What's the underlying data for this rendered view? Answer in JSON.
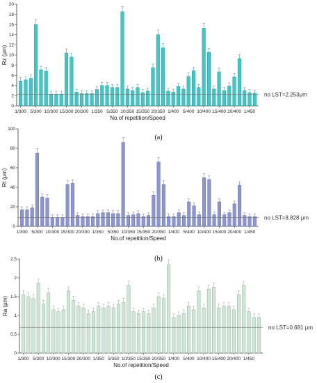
{
  "chart_data": [
    {
      "type": "bar",
      "panel_label": "(a)",
      "color": "#3ec9c9",
      "ylabel": "Rz (μm)",
      "xlabel": "No.of repetition/Speed",
      "ylim": [
        0,
        20
      ],
      "yticks": [
        0,
        2,
        4,
        6,
        8,
        10,
        12,
        14,
        16,
        18,
        20
      ],
      "xtick_labels": [
        "1/300",
        "5/300",
        "10/300",
        "15/300",
        "20/300",
        "1/350",
        "5/350",
        "10/350",
        "15/350",
        "20/350",
        "1/400",
        "5/400",
        "10/400",
        "15/400",
        "20/400",
        "1/450"
      ],
      "reference": {
        "value": 2.253,
        "label": "no LST=2.253μm"
      },
      "values": [
        4.9,
        5.1,
        5.4,
        16.0,
        7.1,
        6.8,
        2.3,
        2.3,
        2.3,
        10.4,
        9.6,
        2.7,
        2.4,
        2.4,
        2.4,
        3.2,
        4.0,
        4.0,
        3.6,
        3.6,
        18.5,
        3.3,
        3.0,
        3.6,
        2.6,
        2.9,
        7.5,
        14.0,
        11.4,
        2.9,
        2.7,
        3.8,
        3.3,
        5.8,
        6.9,
        3.6,
        15.3,
        10.5,
        3.3,
        6.7,
        3.0,
        3.9,
        5.7,
        9.3,
        3.0,
        2.6,
        2.5
      ],
      "grid": false
    },
    {
      "type": "bar",
      "panel_label": "(b)",
      "color": "#8c96d6",
      "ylabel": "Rt (μm)",
      "xlabel": "No.of repetition/Speed",
      "ylim": [
        0,
        100
      ],
      "yticks": [
        0,
        20,
        40,
        60,
        80,
        100
      ],
      "xtick_labels": [
        "1/300",
        "5/300",
        "10/300",
        "15/300",
        "20/300",
        "1/350",
        "5/350",
        "10/350",
        "15/350",
        "20/350",
        "1/400",
        "5/400",
        "10/400",
        "15/400",
        "20/400",
        "1/450"
      ],
      "reference": {
        "value": 8.828,
        "label": "no LST=8.828 μm"
      },
      "values": [
        17,
        17,
        19,
        75,
        30,
        29,
        9,
        9,
        9,
        43,
        44,
        11,
        10,
        10,
        10,
        13,
        14,
        14,
        13,
        13,
        86,
        11,
        12,
        13,
        10,
        11,
        32,
        66,
        43,
        10,
        10,
        14,
        11,
        25,
        21,
        12,
        50,
        48,
        12,
        25,
        12,
        14,
        23,
        42,
        11,
        10,
        10
      ],
      "grid": false
    },
    {
      "type": "bar",
      "panel_label": "(c)",
      "color": "#cde9d6",
      "ylabel": "Ra (μm)",
      "xlabel": "No.of repetition/Speed",
      "ylim": [
        0,
        2.5
      ],
      "yticks": [
        0,
        0.5,
        1.0,
        1.5,
        2.0,
        2.5
      ],
      "xtick_labels": [
        "1/300",
        "5/300",
        "10/300",
        "15/300",
        "20/300",
        "1/350",
        "5/350",
        "10/350",
        "15/350",
        "20/350",
        "1/400",
        "5/400",
        "10/400",
        "15/400",
        "20/400",
        "1/450"
      ],
      "reference": {
        "value": 0.681,
        "label": "no LST=0.681 μm"
      },
      "values": [
        1.55,
        1.5,
        1.45,
        1.85,
        1.3,
        1.6,
        1.15,
        1.1,
        1.15,
        1.65,
        1.4,
        1.25,
        1.2,
        1.05,
        1.1,
        1.25,
        1.2,
        1.25,
        1.2,
        1.3,
        1.35,
        1.8,
        1.1,
        1.05,
        1.1,
        1.05,
        1.2,
        1.5,
        1.45,
        2.35,
        0.95,
        1.0,
        1.05,
        1.25,
        1.15,
        1.65,
        1.2,
        1.7,
        1.75,
        1.2,
        1.25,
        1.25,
        1.15,
        1.55,
        1.8,
        1.1,
        0.95,
        0.95
      ],
      "grid": false
    }
  ]
}
